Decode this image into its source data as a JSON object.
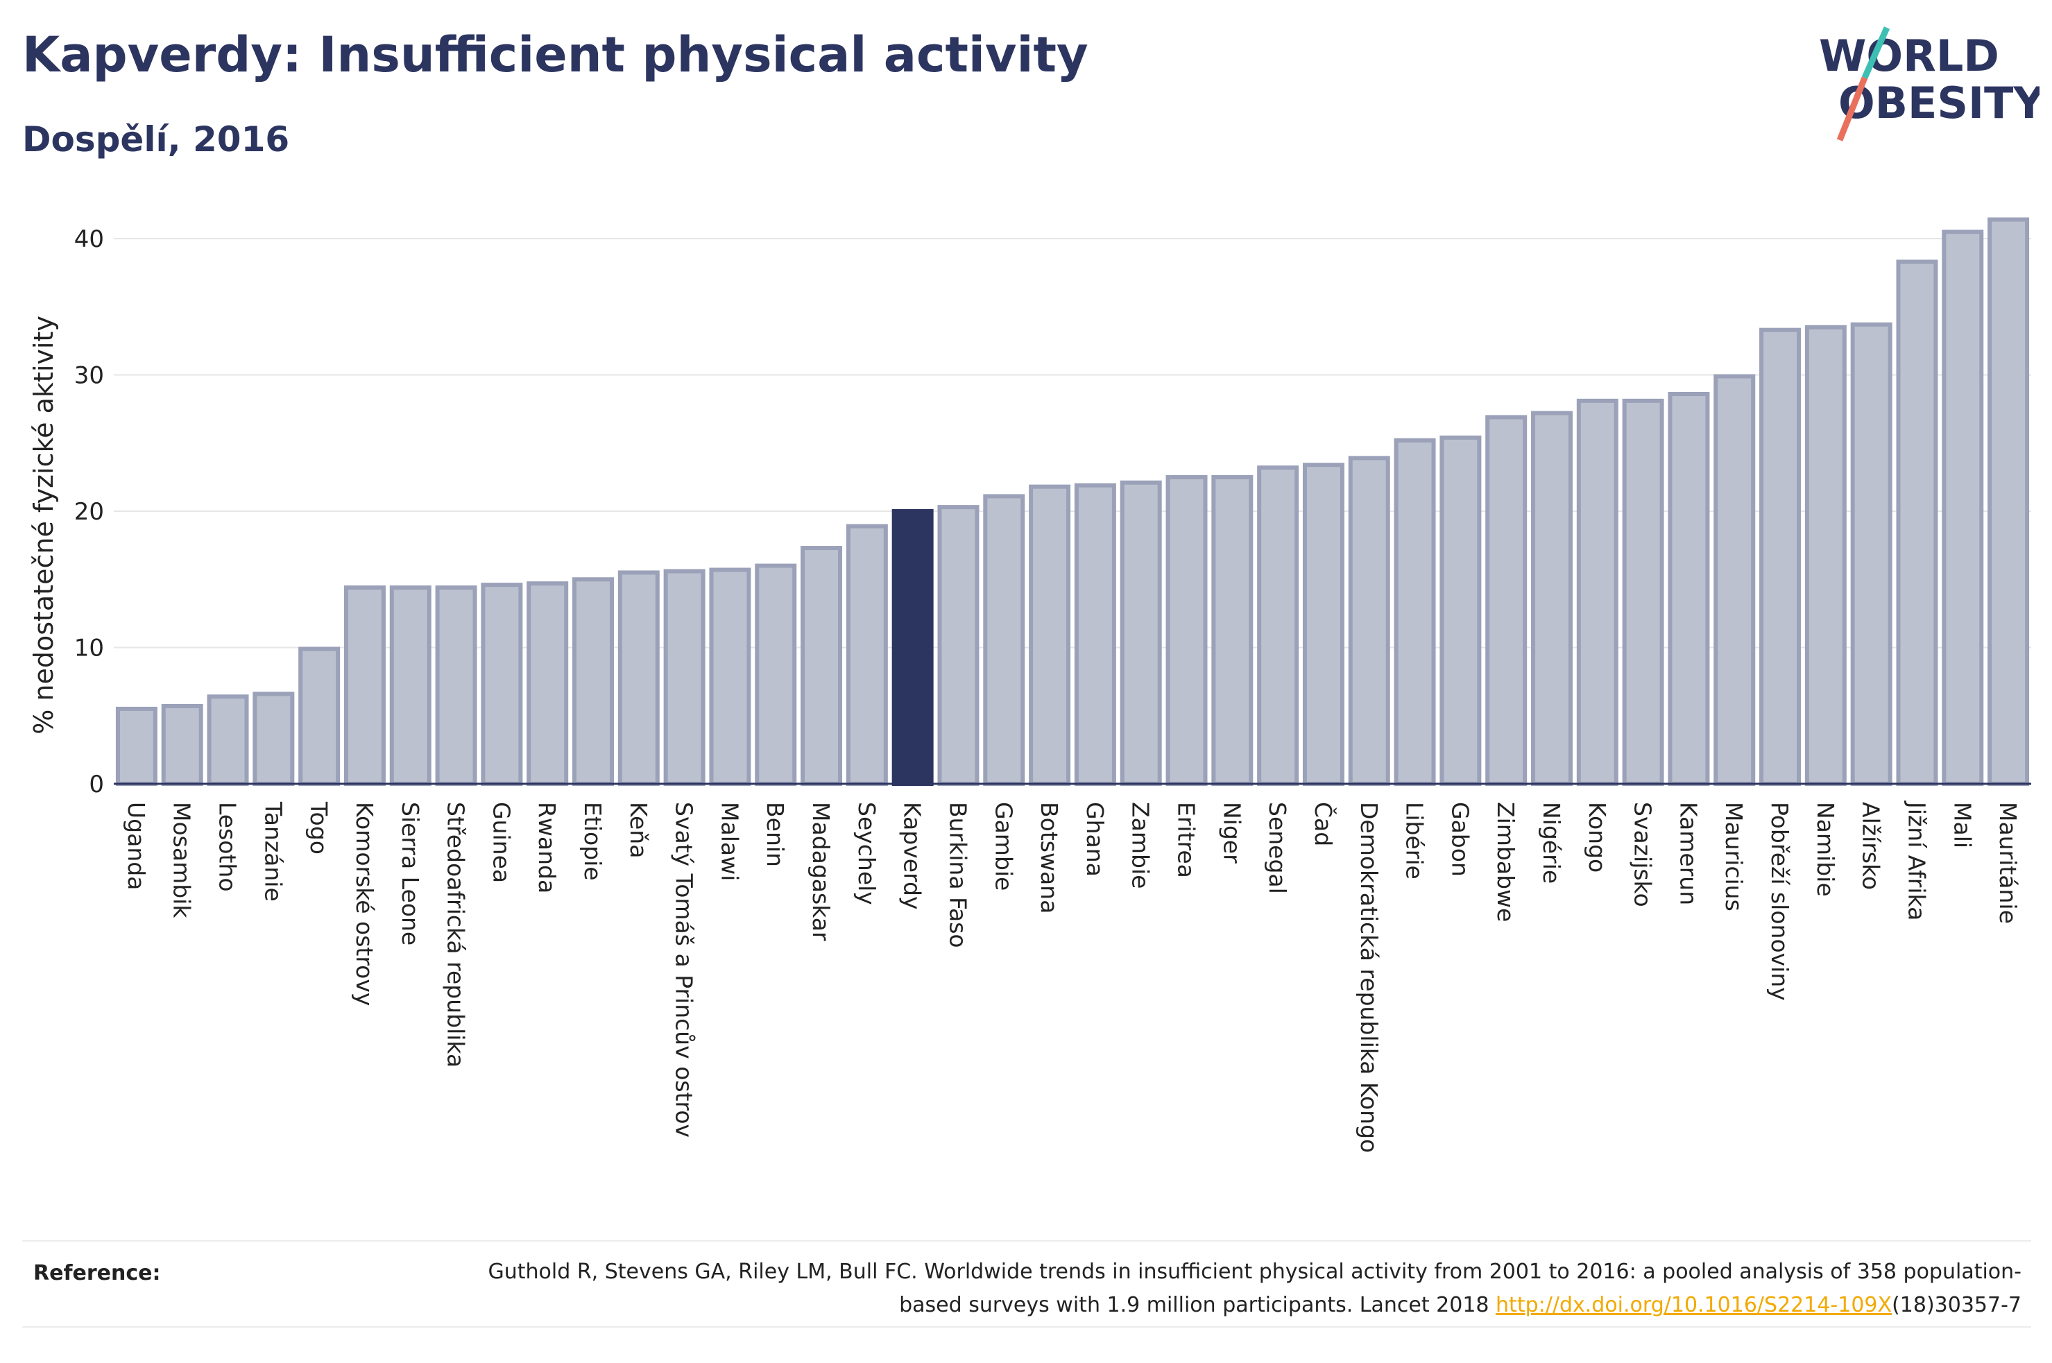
{
  "title": "Kapverdy: Insufficient physical activity",
  "subtitle": "Dospělí, 2016",
  "logo": {
    "line1": "WORLD",
    "line2": "OBESITY"
  },
  "colors": {
    "title": "#2c3560",
    "bar_default": "#bcc1cf",
    "bar_default_stroke": "#9aa1b8",
    "bar_highlight": "#2c3560",
    "grid": "#e6e6e6",
    "axis": "#2c3560",
    "link": "#f2a900"
  },
  "chart_data": {
    "type": "bar",
    "ylabel": "% nedostatečné fyzické aktivity",
    "ylim": [
      0,
      42
    ],
    "yticks": [
      0,
      10,
      20,
      30,
      40
    ],
    "grid": true,
    "highlight": "Kapverdy",
    "categories": [
      "Uganda",
      "Mosambik",
      "Lesotho",
      "Tanzánie",
      "Togo",
      "Komorské ostrovy",
      "Sierra Leone",
      "Středoafrická republika",
      "Guinea",
      "Rwanda",
      "Etiopie",
      "Keňa",
      "Svatý Tomáš a Princův ostrov",
      "Malawi",
      "Benin",
      "Madagaskar",
      "Seychely",
      "Kapverdy",
      "Burkina Faso",
      "Gambie",
      "Botswana",
      "Ghana",
      "Zambie",
      "Eritrea",
      "Niger",
      "Senegal",
      "Čad",
      "Demokratická republika Kongo",
      "Libérie",
      "Gabon",
      "Zimbabwe",
      "Nigérie",
      "Kongo",
      "Svazijsko",
      "Kamerun",
      "Mauricius",
      "Pobřeží slonoviny",
      "Namibie",
      "Alžírsko",
      "Jižní Afrika",
      "Mali",
      "Mauritánie"
    ],
    "values": [
      5.5,
      5.7,
      6.4,
      6.6,
      9.9,
      14.4,
      14.4,
      14.4,
      14.6,
      14.7,
      15.0,
      15.5,
      15.6,
      15.7,
      16.0,
      17.3,
      18.9,
      20.0,
      20.3,
      21.1,
      21.8,
      21.9,
      22.1,
      22.5,
      22.5,
      23.2,
      23.4,
      23.9,
      25.2,
      25.4,
      26.9,
      27.2,
      28.1,
      28.1,
      28.6,
      29.9,
      33.3,
      33.5,
      33.7,
      38.3,
      40.5,
      41.4
    ]
  },
  "reference": {
    "label": "Reference:",
    "text_before": "Guthold R, Stevens GA, Riley LM, Bull FC. Worldwide trends in insufficient physical activity from 2001 to 2016: a pooled analysis of 358 population-based surveys with 1.9 million participants. Lancet 2018 ",
    "link_text": "http://dx.doi.org/10.1016/S2214-109X",
    "text_after": "(18)30357-7"
  }
}
